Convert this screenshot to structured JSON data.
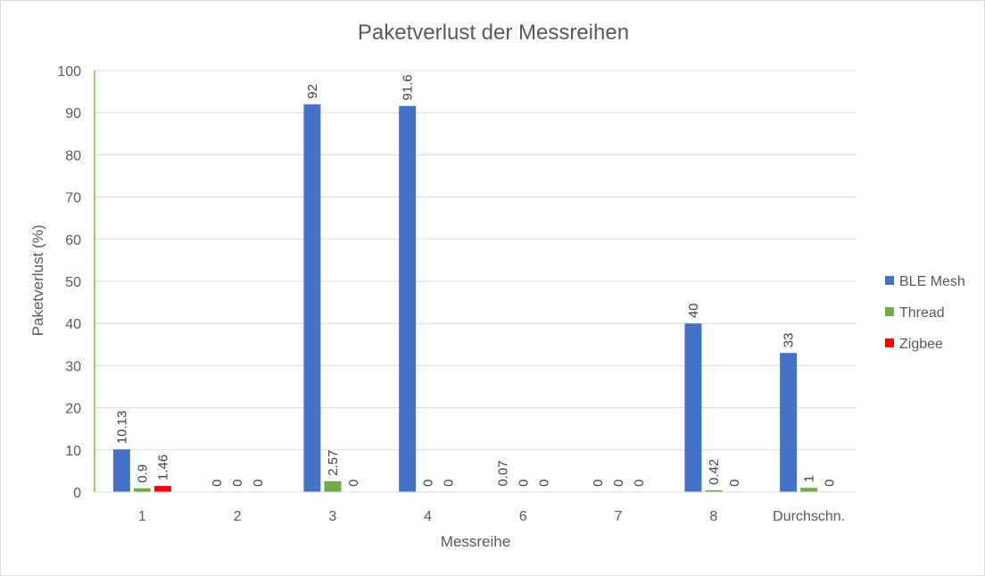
{
  "chart_data": {
    "type": "bar",
    "title": "Paketverlust der Messreihen",
    "xlabel": "Messreihe",
    "ylabel": "Paketverlust (%)",
    "ylim": [
      0,
      100
    ],
    "ytick_step": 10,
    "grid": true,
    "legend_position": "right",
    "categories": [
      "1",
      "2",
      "3",
      "4",
      "6",
      "7",
      "8",
      "Durchschn."
    ],
    "series": [
      {
        "name": "BLE Mesh",
        "color": "#4472c4",
        "values": [
          10.13,
          0,
          92,
          91.6,
          0.07,
          0,
          40,
          33
        ]
      },
      {
        "name": "Thread",
        "color": "#70ad47",
        "values": [
          0.9,
          0,
          2.57,
          0,
          0,
          0,
          0.42,
          1
        ]
      },
      {
        "name": "Zigbee",
        "color": "#ff0000",
        "values": [
          1.46,
          0,
          0,
          0,
          0,
          0,
          0,
          0
        ]
      }
    ]
  }
}
